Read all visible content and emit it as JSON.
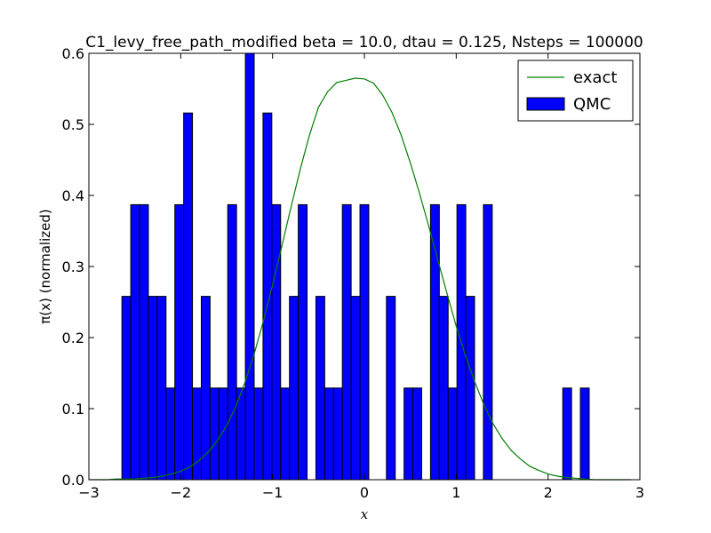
{
  "chart_data": {
    "type": "bar",
    "title": "C1_levy_free_path_modified beta = 10.0, dtau = 0.125, Nsteps = 100000",
    "xlabel": "x",
    "ylabel": "π(x) (normalized)",
    "xlim": [
      -3,
      3
    ],
    "ylim": [
      0,
      0.6
    ],
    "x_ticks": [
      -3,
      -2,
      -1,
      0,
      1,
      2,
      3
    ],
    "x_tick_labels": [
      "−3",
      "−2",
      "−1",
      "0",
      "1",
      "2",
      "3"
    ],
    "y_ticks": [
      0.0,
      0.1,
      0.2,
      0.3,
      0.4,
      0.5,
      0.6
    ],
    "y_tick_labels": [
      "0.0",
      "0.1",
      "0.2",
      "0.3",
      "0.4",
      "0.5",
      "0.6"
    ],
    "grid": false,
    "legend_position": "top-right",
    "histogram": {
      "name": "QMC",
      "color": "#0000ff",
      "edgecolor": "#000000",
      "bin_start": -2.64,
      "bin_width": 0.096,
      "values": [
        0.258,
        0.387,
        0.387,
        0.258,
        0.258,
        0.129,
        0.387,
        0.516,
        0.129,
        0.258,
        0.129,
        0.129,
        0.387,
        0.129,
        0.6,
        0.129,
        0.516,
        0.387,
        0.129,
        0.258,
        0.387,
        0.0,
        0.258,
        0.129,
        0.129,
        0.387,
        0.258,
        0.387,
        0.0,
        0.0,
        0.258,
        0.0,
        0.129,
        0.129,
        0.0,
        0.387,
        0.258,
        0.129,
        0.387,
        0.258,
        0.0,
        0.387,
        0.0,
        0.0,
        0.0,
        0.0,
        0.0,
        0.0,
        0.0,
        0.0,
        0.129,
        0.0,
        0.129
      ]
    },
    "series": [
      {
        "name": "exact",
        "type": "line",
        "color": "#008000",
        "x": [
          -3.0,
          -2.9,
          -2.8,
          -2.7,
          -2.6,
          -2.5,
          -2.4,
          -2.3,
          -2.2,
          -2.1,
          -2.0,
          -1.9,
          -1.8,
          -1.7,
          -1.6,
          -1.5,
          -1.4,
          -1.3,
          -1.2,
          -1.1,
          -1.0,
          -0.9,
          -0.8,
          -0.7,
          -0.6,
          -0.5,
          -0.4,
          -0.3,
          -0.2,
          -0.1,
          0.0,
          0.1,
          0.2,
          0.3,
          0.4,
          0.5,
          0.6,
          0.7,
          0.8,
          0.9,
          1.0,
          1.1,
          1.2,
          1.3,
          1.4,
          1.5,
          1.6,
          1.7,
          1.8,
          1.9,
          2.0,
          2.1,
          2.2,
          2.3,
          2.4,
          2.5,
          2.6,
          2.7,
          2.8,
          2.9
        ],
        "y": [
          0.0,
          0.0,
          0.0,
          0.001,
          0.001,
          0.001,
          0.002,
          0.003,
          0.005,
          0.008,
          0.012,
          0.018,
          0.027,
          0.039,
          0.055,
          0.076,
          0.103,
          0.137,
          0.177,
          0.223,
          0.274,
          0.328,
          0.383,
          0.436,
          0.484,
          0.524,
          0.546,
          0.559,
          0.562,
          0.565,
          0.564,
          0.558,
          0.541,
          0.517,
          0.485,
          0.446,
          0.403,
          0.357,
          0.309,
          0.262,
          0.216,
          0.175,
          0.138,
          0.106,
          0.079,
          0.058,
          0.041,
          0.029,
          0.019,
          0.013,
          0.008,
          0.005,
          0.003,
          0.002,
          0.001,
          0.0,
          0.0,
          0.0,
          0.0,
          0.0
        ]
      }
    ],
    "legend": [
      {
        "label": "exact",
        "kind": "line",
        "color": "#008000"
      },
      {
        "label": "QMC",
        "kind": "patch",
        "color": "#0000ff"
      }
    ]
  }
}
